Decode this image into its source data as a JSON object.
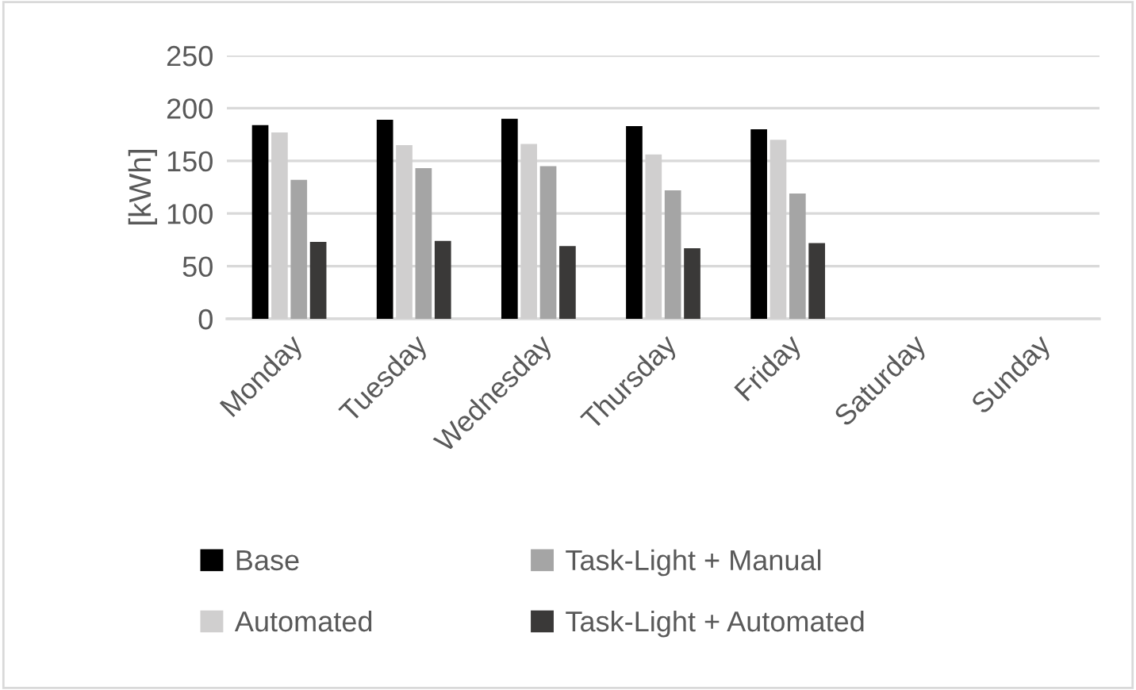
{
  "chart_data": {
    "type": "bar",
    "ylabel": "[kWh]",
    "categories": [
      "Monday",
      "Tuesday",
      "Wednesday",
      "Thursday",
      "Friday",
      "Saturday",
      "Sunday"
    ],
    "series": [
      {
        "name": "Base",
        "color": "#000000",
        "values": [
          184,
          189,
          190,
          183,
          180,
          0,
          0
        ]
      },
      {
        "name": "Automated",
        "color": "#d0cfcf",
        "values": [
          177,
          165,
          166,
          156,
          170,
          0,
          0
        ]
      },
      {
        "name": "Task-Light + Manual",
        "color": "#a5a5a5",
        "values": [
          132,
          143,
          145,
          122,
          119,
          0,
          0
        ]
      },
      {
        "name": "Task-Light + Automated",
        "color": "#3a3938",
        "values": [
          73,
          74,
          69,
          67,
          72,
          0,
          0
        ]
      }
    ],
    "ylim": [
      0,
      250
    ],
    "yticks": [
      0,
      50,
      100,
      150,
      200,
      250
    ],
    "grid": "y",
    "legend": "bottom"
  }
}
